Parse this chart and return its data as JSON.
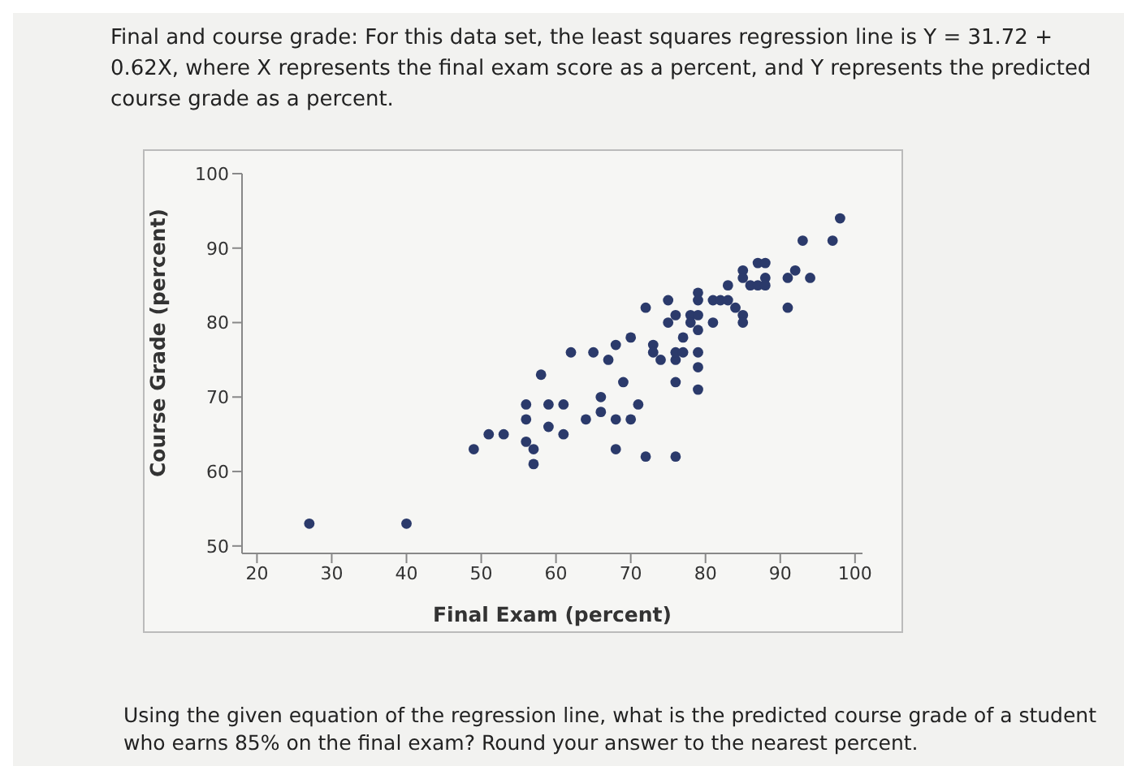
{
  "chart_data": {
    "type": "scatter",
    "title": "Final and course grade: For this data set, the least squares regression line is Y = 31.72 + 0.62X, where X represents the final exam score as a percent, and Y represents the predicted course grade as a percent.",
    "xlabel": "Final Exam (percent)",
    "ylabel": "Course Grade (percent)",
    "annotations": [
      "Using the given equation of the regression line, what is the predicted course grade of a student who earns 85% on the final exam? Round your answer to the nearest percent."
    ],
    "x": [
      27,
      40,
      49,
      51,
      53,
      56,
      56,
      56,
      57,
      57,
      58,
      59,
      59,
      61,
      61,
      62,
      64,
      65,
      66,
      66,
      67,
      68,
      68,
      68,
      69,
      70,
      70,
      71,
      72,
      72,
      73,
      73,
      74,
      75,
      75,
      76,
      76,
      76,
      76,
      76,
      77,
      77,
      78,
      78,
      79,
      79,
      79,
      79,
      79,
      79,
      79,
      81,
      81,
      82,
      83,
      83,
      84,
      85,
      85,
      85,
      85,
      86,
      87,
      87,
      88,
      88,
      88,
      91,
      91,
      92,
      93,
      94,
      97,
      98
    ],
    "series": [
      {
        "color": "#2b3a6b",
        "values": [
          53,
          53,
          63,
          65,
          65,
          69,
          67,
          64,
          63,
          61,
          73,
          69,
          66,
          69,
          65,
          76,
          67,
          76,
          70,
          68,
          75,
          67,
          63,
          77,
          72,
          67,
          78,
          69,
          62,
          82,
          77,
          76,
          75,
          83,
          80,
          62,
          72,
          75,
          81,
          76,
          78,
          76,
          81,
          80,
          81,
          79,
          76,
          74,
          71,
          84,
          83,
          83,
          80,
          83,
          83,
          85,
          82,
          87,
          81,
          80,
          86,
          85,
          85,
          88,
          88,
          86,
          85,
          86,
          82,
          87,
          91,
          86,
          91,
          94
        ]
      }
    ],
    "xlim": [
      18,
      101
    ],
    "ylim": [
      49,
      100
    ],
    "xticks": [
      20,
      30,
      40,
      50,
      60,
      70,
      80,
      90,
      100
    ],
    "yticks": [
      50,
      60,
      70,
      80,
      90,
      100
    ],
    "marker": "circle",
    "grid": false
  }
}
